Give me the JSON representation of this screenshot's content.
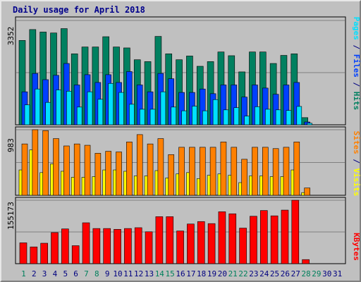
{
  "title": "Daily usage for April 2018",
  "colors": {
    "background": "#c0c0c0",
    "hits": "#008060",
    "files": "#0040ff",
    "pages": "#00e0ff",
    "visits": "#ffff00",
    "sites": "#ff8000",
    "kbytes": "#ff0000",
    "weekday_label": "#000080",
    "weekend_label": "#00805c"
  },
  "chart_data": {
    "type": "bar",
    "categories": [
      "1",
      "2",
      "3",
      "4",
      "5",
      "6",
      "7",
      "8",
      "9",
      "10",
      "11",
      "12",
      "13",
      "14",
      "15",
      "16",
      "17",
      "18",
      "19",
      "20",
      "21",
      "22",
      "23",
      "24",
      "25",
      "26",
      "27",
      "28",
      "29",
      "30",
      "31"
    ],
    "weekend_days": [
      1,
      7,
      8,
      14,
      15,
      21,
      22,
      28,
      29
    ],
    "panels": [
      {
        "id": "hits-files-pages",
        "ymax_label": "3352",
        "ymax": 3352,
        "series": [
          {
            "name": "Hits",
            "color": "#008060",
            "values": [
              2710,
              3060,
              2980,
              2950,
              3090,
              2280,
              2500,
              2500,
              2830,
              2500,
              2470,
              2090,
              2030,
              2840,
              2280,
              2090,
              2210,
              1880,
              2030,
              2340,
              2220,
              1700,
              2340,
              2340,
              1970,
              2230,
              2280,
              230,
              null,
              null,
              null
            ]
          },
          {
            "name": "Files",
            "color": "#0040ff",
            "values": [
              1060,
              1650,
              1450,
              1590,
              1970,
              1280,
              1610,
              1360,
              1610,
              1360,
              1710,
              1280,
              1060,
              1650,
              1480,
              1040,
              1040,
              1150,
              1000,
              1280,
              1280,
              890,
              1280,
              1180,
              980,
              1280,
              1360,
              90,
              null,
              null,
              null
            ]
          },
          {
            "name": "Pages",
            "color": "#00e0ff",
            "values": [
              640,
              1150,
              720,
              1120,
              1080,
              570,
              1060,
              820,
              1330,
              1040,
              660,
              500,
              500,
              1060,
              570,
              450,
              600,
              450,
              810,
              480,
              550,
              280,
              580,
              500,
              480,
              460,
              590,
              50,
              null,
              null,
              null
            ]
          }
        ]
      },
      {
        "id": "visits-sites",
        "ymax_label": "983",
        "ymax": 983,
        "series": [
          {
            "name": "Visits",
            "color": "#ffff00",
            "values": [
              380,
              680,
              340,
              470,
              360,
              270,
              270,
              280,
              380,
              380,
              360,
              290,
              290,
              370,
              260,
              320,
              340,
              250,
              300,
              320,
              300,
              190,
              290,
              290,
              280,
              280,
              380,
              40,
              null,
              null,
              null
            ]
          },
          {
            "name": "Sites",
            "color": "#ff8000",
            "values": [
              770,
              983,
              970,
              850,
              740,
              770,
              750,
              630,
              660,
              650,
              800,
              910,
              770,
              850,
              610,
              720,
              720,
              720,
              720,
              800,
              720,
              540,
              720,
              720,
              700,
              720,
              800,
              110,
              null,
              null,
              null
            ]
          }
        ]
      },
      {
        "id": "kbytes",
        "ymax_label": "155173",
        "ymax": 155173,
        "series": [
          {
            "name": "KBytes",
            "color": "#ff0000",
            "values": [
              51000,
              41000,
              50000,
              76000,
              85000,
              44000,
              100000,
              86000,
              86000,
              84000,
              86000,
              88000,
              78000,
              115000,
              115000,
              80000,
              97000,
              103000,
              98000,
              127000,
              122000,
              87000,
              116000,
              130000,
              117000,
              131000,
              155173,
              10000,
              null,
              null,
              null
            ]
          }
        ]
      }
    ],
    "side_labels": [
      {
        "parts": [
          {
            "text": "Pages",
            "color": "#00e0ff"
          },
          {
            "text": " / ",
            "color": "#000080"
          },
          {
            "text": "Files",
            "color": "#0040ff"
          },
          {
            "text": " / ",
            "color": "#000080"
          },
          {
            "text": "Hits",
            "color": "#008060"
          }
        ]
      },
      {
        "parts": [
          {
            "text": "Sites",
            "color": "#ff8000"
          },
          {
            "text": " / ",
            "color": "#000080"
          },
          {
            "text": "Visits",
            "color": "#ffff00"
          }
        ]
      },
      {
        "parts": [
          {
            "text": "KBytes",
            "color": "#ff0000"
          }
        ]
      }
    ]
  }
}
